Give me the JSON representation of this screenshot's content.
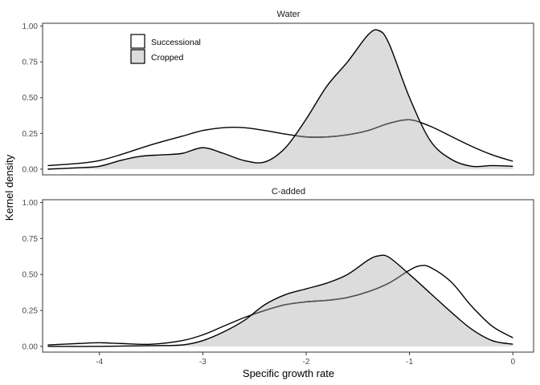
{
  "chart_data": {
    "type": "area",
    "xlabel": "Specific growth rate",
    "ylabel": "Kernel density",
    "xlim": [
      -4.55,
      0.2
    ],
    "ylim": [
      -0.04,
      1.02
    ],
    "xticks": [
      -4,
      -3,
      -2,
      -1,
      0
    ],
    "yticks": [
      0.0,
      0.25,
      0.5,
      0.75,
      1.0
    ],
    "xtick_labels": [
      "-4",
      "-3",
      "-2",
      "-1",
      "0"
    ],
    "ytick_labels": [
      "0.00",
      "0.25",
      "0.50",
      "0.75",
      "1.00"
    ],
    "grid": false,
    "legend": {
      "position": "top-left",
      "entries": [
        {
          "label": "Successional",
          "fill": "#ffffff"
        },
        {
          "label": "Cropped",
          "fill": "#dcdcdc"
        }
      ]
    },
    "colors": {
      "cropped_fill": "#dcdcdc",
      "line": "#000000",
      "hidden_line": "#555555",
      "frame": "#333333"
    },
    "panels": [
      {
        "title": "Water",
        "series": [
          {
            "name": "Successional",
            "style": "line",
            "x": [
              -4.5,
              -4.2,
              -4.0,
              -3.8,
              -3.5,
              -3.2,
              -3.0,
              -2.8,
              -2.6,
              -2.4,
              -2.2,
              -2.0,
              -1.8,
              -1.6,
              -1.4,
              -1.2,
              -1.0,
              -0.8,
              -0.6,
              -0.4,
              -0.2,
              0.0
            ],
            "y": [
              0.025,
              0.04,
              0.06,
              0.1,
              0.17,
              0.23,
              0.27,
              0.29,
              0.29,
              0.27,
              0.245,
              0.225,
              0.225,
              0.24,
              0.27,
              0.32,
              0.345,
              0.3,
              0.23,
              0.16,
              0.1,
              0.055
            ]
          },
          {
            "name": "Cropped",
            "style": "area",
            "x": [
              -4.5,
              -4.2,
              -4.0,
              -3.8,
              -3.6,
              -3.4,
              -3.2,
              -3.0,
              -2.8,
              -2.6,
              -2.4,
              -2.2,
              -2.0,
              -1.8,
              -1.6,
              -1.4,
              -1.3,
              -1.2,
              -1.0,
              -0.8,
              -0.6,
              -0.4,
              -0.2,
              0.0
            ],
            "y": [
              0.0,
              0.01,
              0.02,
              0.06,
              0.09,
              0.1,
              0.11,
              0.15,
              0.11,
              0.06,
              0.05,
              0.15,
              0.35,
              0.58,
              0.75,
              0.94,
              0.97,
              0.88,
              0.5,
              0.2,
              0.07,
              0.02,
              0.025,
              0.02
            ]
          }
        ]
      },
      {
        "title": "C-added",
        "series": [
          {
            "name": "Successional",
            "style": "line",
            "x": [
              -4.5,
              -4.2,
              -4.0,
              -3.8,
              -3.5,
              -3.2,
              -3.0,
              -2.8,
              -2.6,
              -2.4,
              -2.2,
              -2.0,
              -1.8,
              -1.6,
              -1.4,
              -1.2,
              -1.0,
              -0.9,
              -0.8,
              -0.6,
              -0.4,
              -0.2,
              0.0
            ],
            "y": [
              0.01,
              0.02,
              0.025,
              0.02,
              0.015,
              0.04,
              0.08,
              0.14,
              0.2,
              0.25,
              0.29,
              0.31,
              0.32,
              0.34,
              0.38,
              0.44,
              0.53,
              0.56,
              0.55,
              0.45,
              0.28,
              0.14,
              0.06
            ]
          },
          {
            "name": "Cropped",
            "style": "area",
            "x": [
              -4.5,
              -4.0,
              -3.5,
              -3.2,
              -3.0,
              -2.8,
              -2.6,
              -2.4,
              -2.2,
              -2.0,
              -1.8,
              -1.6,
              -1.4,
              -1.3,
              -1.2,
              -1.0,
              -0.8,
              -0.6,
              -0.4,
              -0.2,
              0.0
            ],
            "y": [
              0.0,
              0.0,
              0.005,
              0.01,
              0.04,
              0.1,
              0.18,
              0.29,
              0.36,
              0.4,
              0.44,
              0.5,
              0.6,
              0.63,
              0.62,
              0.5,
              0.37,
              0.24,
              0.12,
              0.04,
              0.015
            ]
          }
        ]
      }
    ]
  }
}
